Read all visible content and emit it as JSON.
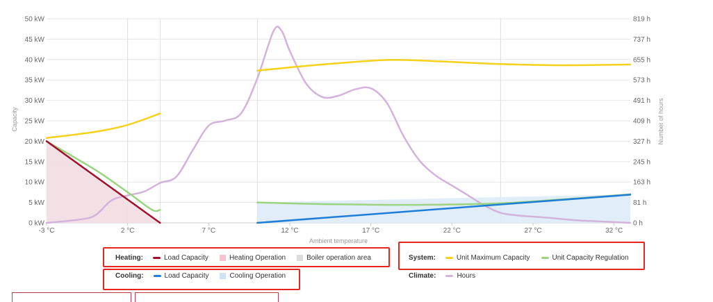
{
  "colors": {
    "unit_max": "#f5d11a",
    "unit_reg": "#9bd47f",
    "heat_load": "#a0102c",
    "heat_fill": "#f1dde2",
    "heat_op_swatch": "#f2c7d1",
    "boiler_swatch": "#dcdcdc",
    "cool_load": "#1c7ed6",
    "cool_fill": "#deebf7",
    "cool_op_swatch": "#cfe2f3",
    "hours": "#d3b3dc",
    "highlight": "#e8251c"
  },
  "legend": {
    "heating": {
      "title": "Heating:",
      "items": [
        "Load Capacity",
        "Heating Operation",
        "Boiler operation area"
      ]
    },
    "cooling": {
      "title": "Cooling:",
      "items": [
        "Load Capacity",
        "Cooling Operation"
      ]
    },
    "system": {
      "title": "System:",
      "items": [
        "Unit Maximum Capacity",
        "Unit Capacity Regulation"
      ]
    },
    "climate": {
      "title": "Climate:",
      "items": [
        "Hours"
      ]
    }
  },
  "chart_data": {
    "type": "line",
    "xlabel": "Ambient temperature",
    "ylabel": "Capacity",
    "y2label": "Number of hours",
    "xlim": [
      -3,
      33
    ],
    "ylim": [
      0,
      50
    ],
    "y2lim": [
      0,
      819
    ],
    "x_ticks": [
      "-3 °C",
      "2 °C",
      "7 °C",
      "12 °C",
      "17 °C",
      "22 °C",
      "27 °C",
      "32 °C"
    ],
    "y_ticks": [
      "0 kW",
      "5 kW",
      "10 kW",
      "15 kW",
      "20 kW",
      "25 kW",
      "30 kW",
      "35 kW",
      "40 kW",
      "45 kW",
      "50 kW"
    ],
    "y2_ticks": [
      "0 h",
      "81 h",
      "163 h",
      "245 h",
      "327 h",
      "409 h",
      "491 h",
      "573 h",
      "655 h",
      "737 h",
      "819 h"
    ],
    "grid_x_at": [
      2,
      4,
      10,
      25
    ],
    "heating_operation_area": {
      "x": [
        -3,
        4
      ],
      "y": [
        20,
        0
      ]
    },
    "cooling_operation_area": {
      "x": [
        10,
        33
      ],
      "y": [
        5,
        7
      ]
    },
    "series": [
      {
        "name": "Unit Maximum Capacity",
        "segments": [
          {
            "x": [
              -3,
              0,
              2,
              4
            ],
            "y": [
              20.8,
              22.3,
              24,
              26.8
            ]
          },
          {
            "x": [
              10,
              14,
              18,
              21,
              25,
              29,
              33
            ],
            "y": [
              37.3,
              38.8,
              39.9,
              39.6,
              38.9,
              38.6,
              38.8
            ]
          }
        ]
      },
      {
        "name": "Unit Capacity Regulation",
        "segments": [
          {
            "x": [
              -3,
              0,
              2,
              3.5,
              4
            ],
            "y": [
              20,
              13,
              7.5,
              3.2,
              3.2
            ]
          },
          {
            "x": [
              10,
              14,
              18,
              22,
              25,
              29,
              33
            ],
            "y": [
              5,
              4.6,
              4.4,
              4.5,
              4.8,
              5.8,
              7
            ]
          }
        ]
      },
      {
        "name": "Heating Load Capacity",
        "segments": [
          {
            "x": [
              -3,
              4
            ],
            "y": [
              20,
              0
            ]
          }
        ]
      },
      {
        "name": "Cooling Load Capacity",
        "segments": [
          {
            "x": [
              10,
              33
            ],
            "y": [
              0,
              6.9
            ]
          }
        ]
      },
      {
        "name": "Hours",
        "axis": "y2",
        "segments": [
          {
            "x": [
              -3,
              -1,
              0,
              1,
              2,
              3,
              4,
              5,
              6,
              7,
              8,
              9,
              10,
              11,
              11.5,
              12,
              13,
              14,
              15,
              16,
              17,
              18,
              19,
              20,
              21,
              22,
              23,
              24,
              25,
              26,
              27,
              28,
              29,
              30,
              31,
              32,
              33
            ],
            "y": [
              0,
              13,
              30,
              90,
              110,
              125,
              160,
              185,
              290,
              390,
              410,
              440,
              580,
              770,
              770,
              690,
              560,
              505,
              510,
              535,
              540,
              480,
              350,
              250,
              190,
              150,
              110,
              70,
              40,
              30,
              25,
              20,
              14,
              9,
              6,
              3,
              0
            ]
          }
        ]
      }
    ]
  }
}
